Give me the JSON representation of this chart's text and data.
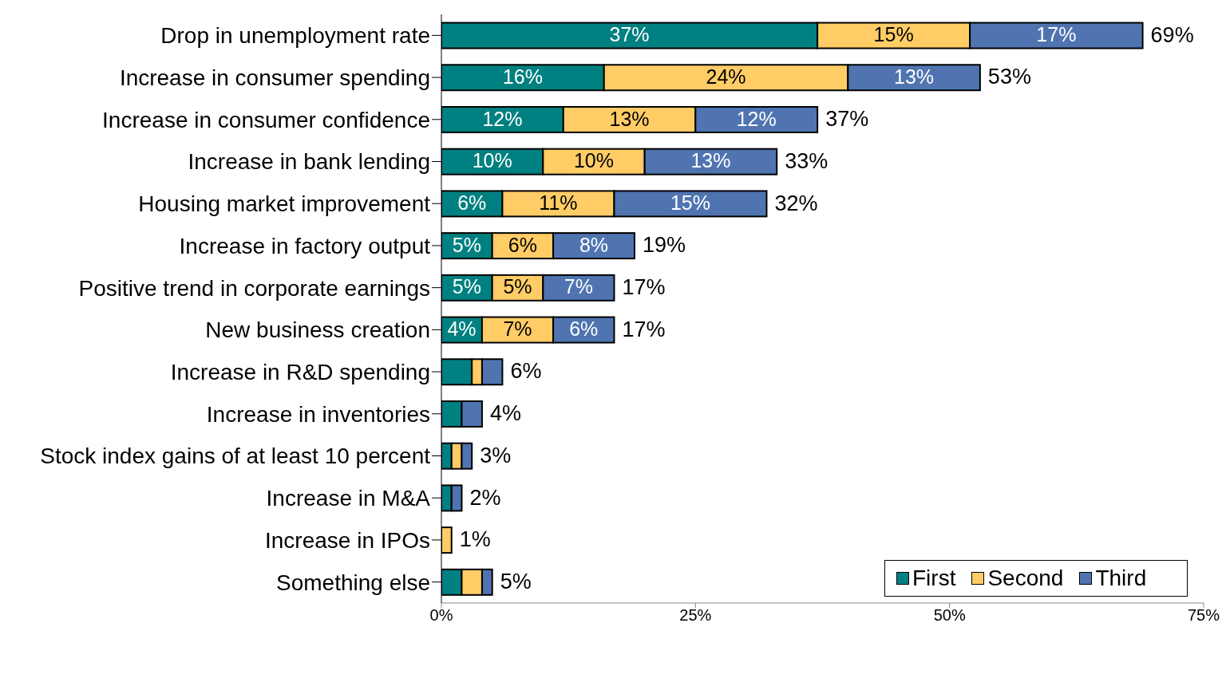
{
  "chart_data": {
    "type": "bar",
    "orientation": "horizontal",
    "stacked": true,
    "categories": [
      "Drop in unemployment rate",
      "Increase in consumer spending",
      "Increase in consumer confidence",
      "Increase in bank lending",
      "Housing market improvement",
      "Increase in factory output",
      "Positive trend in corporate earnings",
      "New business creation",
      "Increase in R&D spending",
      "Increase in inventories",
      "Stock index gains of at least 10 percent",
      "Increase in M&A",
      "Increase in IPOs",
      "Something else"
    ],
    "series": [
      {
        "name": "First",
        "color": "#008080",
        "values": [
          37,
          16,
          12,
          10,
          6,
          5,
          5,
          4,
          3,
          2,
          1,
          1,
          0,
          2
        ],
        "value_labels": [
          "37%",
          "16%",
          "12%",
          "10%",
          "6%",
          "5%",
          "5%",
          "4%",
          null,
          null,
          null,
          null,
          null,
          null
        ]
      },
      {
        "name": "Second",
        "color": "#ffcc66",
        "values": [
          15,
          24,
          13,
          10,
          11,
          6,
          5,
          7,
          1,
          0,
          1,
          0,
          1,
          2
        ],
        "value_labels": [
          "15%",
          "24%",
          "13%",
          "10%",
          "11%",
          "6%",
          "5%",
          "7%",
          null,
          null,
          null,
          null,
          null,
          null
        ]
      },
      {
        "name": "Third",
        "color": "#4f74b0",
        "values": [
          17,
          13,
          12,
          13,
          15,
          8,
          7,
          6,
          2,
          2,
          1,
          1,
          0,
          1
        ],
        "value_labels": [
          "17%",
          "13%",
          "12%",
          "13%",
          "15%",
          "8%",
          "7%",
          "6%",
          null,
          null,
          null,
          null,
          null,
          null
        ]
      }
    ],
    "totals": [
      "69%",
      "53%",
      "37%",
      "33%",
      "32%",
      "19%",
      "17%",
      "17%",
      "6%",
      "4%",
      "3%",
      "2%",
      "1%",
      "5%"
    ],
    "xlim": [
      0,
      75
    ],
    "xticks": [
      {
        "value": 0,
        "label": "0%"
      },
      {
        "value": 25,
        "label": "25%"
      },
      {
        "value": 50,
        "label": "50%"
      },
      {
        "value": 75,
        "label": "75%"
      }
    ],
    "legend": "bottom right"
  }
}
